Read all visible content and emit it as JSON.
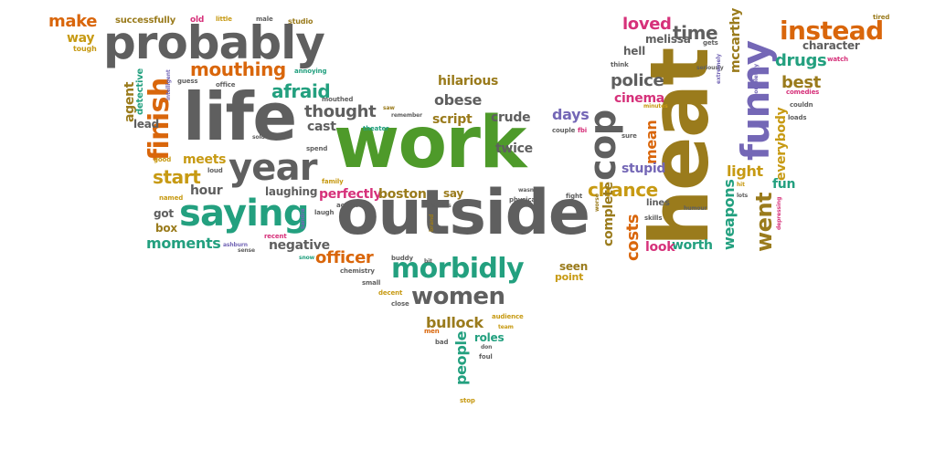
{
  "colors": {
    "gray": "#5f5f5f",
    "green": "#4e9a2a",
    "olive": "#9a7b1c",
    "orange": "#d9660b",
    "teal": "#23a07f",
    "purple": "#7467b6",
    "pink": "#d6317a",
    "gold": "#c79a13"
  },
  "words": [
    {
      "t": "work",
      "c": "green"
    },
    {
      "t": "heat",
      "c": "olive"
    },
    {
      "t": "life",
      "c": "gray"
    },
    {
      "t": "outside",
      "c": "gray"
    },
    {
      "t": "probably",
      "c": "gray"
    },
    {
      "t": "saying",
      "c": "teal"
    },
    {
      "t": "year",
      "c": "gray"
    },
    {
      "t": "funny",
      "c": "purple"
    },
    {
      "t": "cop",
      "c": "gray"
    },
    {
      "t": "morbidly",
      "c": "teal"
    },
    {
      "t": "women",
      "c": "gray"
    },
    {
      "t": "finish",
      "c": "orange"
    },
    {
      "t": "instead",
      "c": "orange"
    },
    {
      "t": "mouthing",
      "c": "orange"
    },
    {
      "t": "afraid",
      "c": "teal"
    },
    {
      "t": "thought",
      "c": "gray"
    },
    {
      "t": "start",
      "c": "gold"
    },
    {
      "t": "chance",
      "c": "gold"
    },
    {
      "t": "went",
      "c": "olive"
    },
    {
      "t": "officer",
      "c": "orange"
    },
    {
      "t": "police",
      "c": "gray"
    },
    {
      "t": "drugs",
      "c": "teal"
    },
    {
      "t": "best",
      "c": "olive"
    },
    {
      "t": "light",
      "c": "gold"
    },
    {
      "t": "costs",
      "c": "orange"
    },
    {
      "t": "weapons",
      "c": "teal"
    },
    {
      "t": "everybody",
      "c": "gold"
    },
    {
      "t": "moments",
      "c": "teal"
    },
    {
      "t": "negative",
      "c": "gray"
    },
    {
      "t": "bullock",
      "c": "olive"
    },
    {
      "t": "people",
      "c": "teal"
    },
    {
      "t": "make",
      "c": "orange"
    },
    {
      "t": "way",
      "c": "gold"
    },
    {
      "t": "time",
      "c": "gray"
    },
    {
      "t": "loved",
      "c": "pink"
    },
    {
      "t": "obese",
      "c": "gray"
    },
    {
      "t": "hilarious",
      "c": "olive"
    },
    {
      "t": "script",
      "c": "olive"
    },
    {
      "t": "crude",
      "c": "gray"
    },
    {
      "t": "days",
      "c": "purple"
    },
    {
      "t": "mean",
      "c": "orange"
    },
    {
      "t": "twice",
      "c": "gray"
    },
    {
      "t": "cinema",
      "c": "pink"
    },
    {
      "t": "stupid",
      "c": "purple"
    },
    {
      "t": "cast",
      "c": "gray"
    },
    {
      "t": "meets",
      "c": "gold"
    },
    {
      "t": "hour",
      "c": "gray"
    },
    {
      "t": "laughing",
      "c": "gray"
    },
    {
      "t": "perfectly",
      "c": "pink"
    },
    {
      "t": "boston",
      "c": "olive"
    },
    {
      "t": "complete",
      "c": "olive"
    },
    {
      "t": "worth",
      "c": "teal"
    },
    {
      "t": "look",
      "c": "pink"
    },
    {
      "t": "fun",
      "c": "teal"
    },
    {
      "t": "mccarthy",
      "c": "olive"
    },
    {
      "t": "melissa",
      "c": "gray"
    },
    {
      "t": "hell",
      "c": "gray"
    },
    {
      "t": "character",
      "c": "gray"
    },
    {
      "t": "agent",
      "c": "olive"
    },
    {
      "t": "detective",
      "c": "teal"
    },
    {
      "t": "successfully",
      "c": "olive"
    },
    {
      "t": "got",
      "c": "gray"
    },
    {
      "t": "box",
      "c": "olive"
    },
    {
      "t": "lead",
      "c": "gray"
    },
    {
      "t": "roles",
      "c": "teal"
    },
    {
      "t": "seen",
      "c": "olive"
    },
    {
      "t": "point",
      "c": "gold"
    },
    {
      "t": "say",
      "c": "olive"
    },
    {
      "t": "lines",
      "c": "gray"
    },
    {
      "t": "tough",
      "c": "gold"
    },
    {
      "t": "old",
      "c": "pink"
    },
    {
      "t": "little",
      "c": "gold"
    },
    {
      "t": "male",
      "c": "gray"
    },
    {
      "t": "studio",
      "c": "olive"
    },
    {
      "t": "annoying",
      "c": "teal"
    },
    {
      "t": "office",
      "c": "gray"
    },
    {
      "t": "guess",
      "c": "gray"
    },
    {
      "t": "intelligent",
      "c": "purple"
    },
    {
      "t": "mouthed",
      "c": "gray"
    },
    {
      "t": "saw",
      "c": "olive"
    },
    {
      "t": "remember",
      "c": "gray"
    },
    {
      "t": "theater",
      "c": "teal"
    },
    {
      "t": "couple",
      "c": "gray"
    },
    {
      "t": "fbi",
      "c": "pink"
    },
    {
      "t": "sure",
      "c": "gray"
    },
    {
      "t": "minutes",
      "c": "gold"
    },
    {
      "t": "comedies",
      "c": "pink"
    },
    {
      "t": "loads",
      "c": "gray"
    },
    {
      "t": "couldn",
      "c": "gray"
    },
    {
      "t": "completely",
      "c": "purple"
    },
    {
      "t": "seriously",
      "c": "gray"
    },
    {
      "t": "extremely",
      "c": "purple"
    },
    {
      "t": "gets",
      "c": "gray"
    },
    {
      "t": "think",
      "c": "gray"
    },
    {
      "t": "watch",
      "c": "pink"
    },
    {
      "t": "tired",
      "c": "olive"
    },
    {
      "t": "good",
      "c": "gold"
    },
    {
      "t": "loud",
      "c": "gray"
    },
    {
      "t": "named",
      "c": "gold"
    },
    {
      "t": "sold",
      "c": "gray"
    },
    {
      "t": "spend",
      "c": "gray"
    },
    {
      "t": "laugh",
      "c": "gray"
    },
    {
      "t": "sandra",
      "c": "purple"
    },
    {
      "t": "family",
      "c": "gold"
    },
    {
      "t": "action",
      "c": "gray"
    },
    {
      "t": "physical",
      "c": "gray"
    },
    {
      "t": "fight",
      "c": "gray"
    },
    {
      "t": "worse",
      "c": "olive"
    },
    {
      "t": "skills",
      "c": "gray"
    },
    {
      "t": "humour",
      "c": "gray"
    },
    {
      "t": "hit",
      "c": "gold"
    },
    {
      "t": "lots",
      "c": "gray"
    },
    {
      "t": "depressing",
      "c": "pink"
    },
    {
      "t": "ashburn",
      "c": "purple"
    },
    {
      "t": "sense",
      "c": "gray"
    },
    {
      "t": "recent",
      "c": "pink"
    },
    {
      "t": "snow",
      "c": "teal"
    },
    {
      "t": "chemistry",
      "c": "gray"
    },
    {
      "t": "small",
      "c": "gray"
    },
    {
      "t": "buddy",
      "c": "gray"
    },
    {
      "t": "decent",
      "c": "gold"
    },
    {
      "t": "close",
      "c": "gray"
    },
    {
      "t": "audience",
      "c": "gold"
    },
    {
      "t": "men",
      "c": "orange"
    },
    {
      "t": "bad",
      "c": "gray"
    },
    {
      "t": "team",
      "c": "gold"
    },
    {
      "t": "don",
      "c": "gray"
    },
    {
      "t": "foul",
      "c": "gray"
    },
    {
      "t": "stop",
      "c": "gold"
    },
    {
      "t": "bit",
      "c": "gray"
    },
    {
      "t": "mullins",
      "c": "gray"
    },
    {
      "t": "wasn",
      "c": "gray"
    },
    {
      "t": "brand",
      "c": "olive"
    }
  ]
}
